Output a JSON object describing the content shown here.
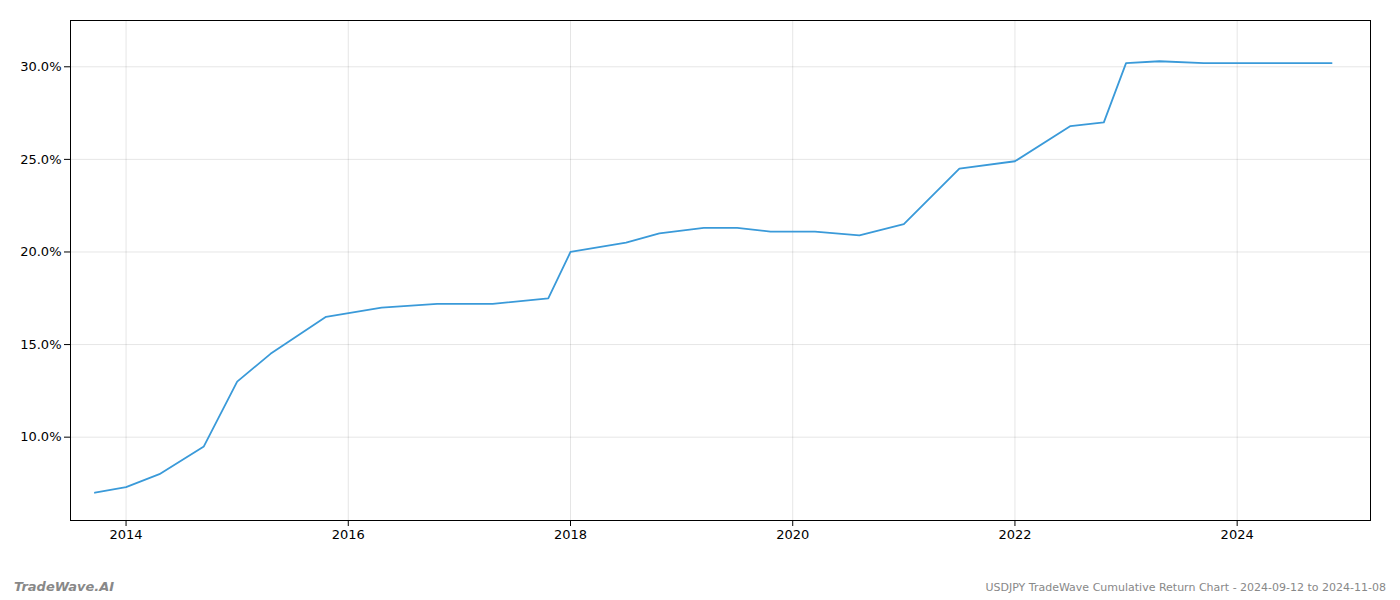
{
  "chart_data": {
    "type": "line",
    "title": "USDJPY TradeWave Cumulative Return Chart - 2024-09-12 to 2024-11-08",
    "annotations": [
      "TradeWave.AI"
    ],
    "x": [
      2013.72,
      2014.0,
      2014.3,
      2014.7,
      2015.0,
      2015.3,
      2015.8,
      2016.3,
      2016.8,
      2017.3,
      2017.8,
      2018.0,
      2018.5,
      2018.8,
      2019.2,
      2019.5,
      2019.8,
      2020.2,
      2020.6,
      2021.0,
      2021.5,
      2022.0,
      2022.5,
      2022.8,
      2023.0,
      2023.3,
      2023.7,
      2024.0,
      2024.5,
      2024.85
    ],
    "values": [
      7.0,
      7.3,
      8.0,
      9.5,
      13.0,
      14.5,
      16.5,
      17.0,
      17.2,
      17.2,
      17.5,
      20.0,
      20.5,
      21.0,
      21.3,
      21.3,
      21.1,
      21.1,
      20.9,
      21.5,
      24.5,
      24.9,
      26.8,
      27.0,
      30.2,
      30.3,
      30.2,
      30.2,
      30.2,
      30.2
    ],
    "color": "#3a9ad9",
    "xlim": [
      2013.5,
      2025.2
    ],
    "ylim": [
      5.5,
      32.5
    ],
    "xticks": [
      2014,
      2016,
      2018,
      2020,
      2022,
      2024
    ],
    "yticks": [
      {
        "value": 10.0,
        "label": "10.0%"
      },
      {
        "value": 15.0,
        "label": "15.0%"
      },
      {
        "value": 20.0,
        "label": "20.0%"
      },
      {
        "value": 25.0,
        "label": "25.0%"
      },
      {
        "value": 30.0,
        "label": "30.0%"
      }
    ],
    "grid": true
  }
}
